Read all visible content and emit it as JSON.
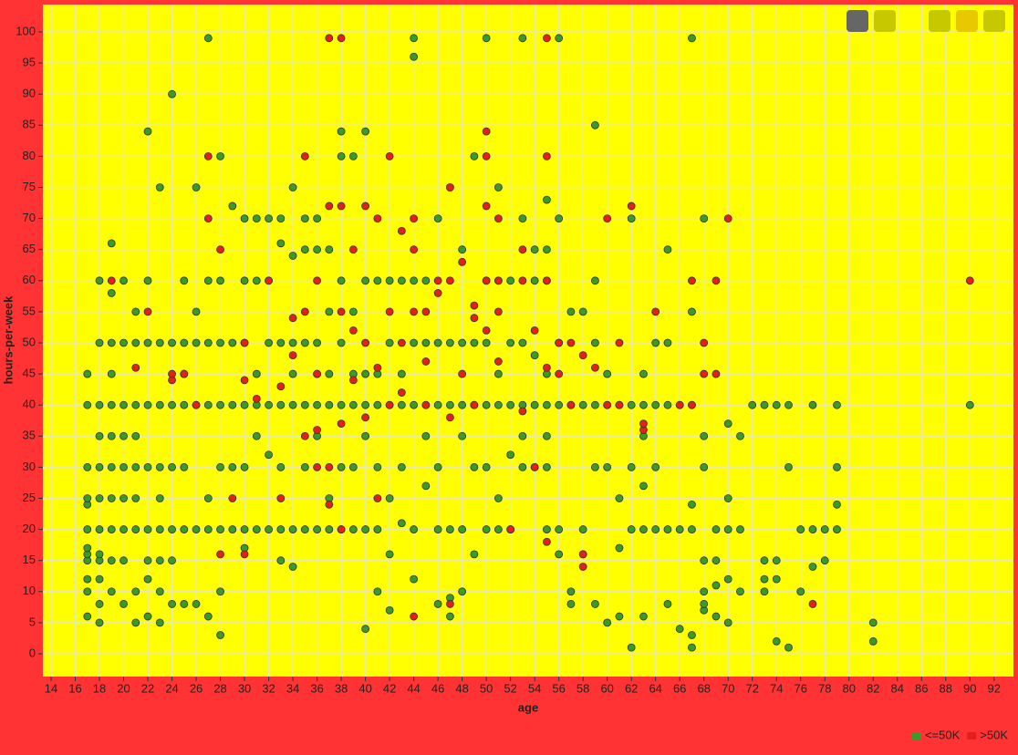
{
  "chart_data": {
    "type": "scatter",
    "x_label": "age",
    "y_label": "hours-per-week",
    "xlim": [
      13.32,
      93.6
    ],
    "ylim": [
      -3.67,
      104.4
    ],
    "xticks": [
      14,
      16,
      18,
      20,
      22,
      24,
      26,
      28,
      30,
      32,
      34,
      36,
      38,
      40,
      42,
      44,
      46,
      48,
      50,
      52,
      54,
      56,
      58,
      60,
      62,
      64,
      66,
      68,
      70,
      72,
      74,
      76,
      78,
      80,
      82,
      84,
      86,
      88,
      90,
      92
    ],
    "yticks": [
      0,
      5,
      10,
      15,
      20,
      25,
      30,
      35,
      40,
      45,
      50,
      55,
      60,
      65,
      70,
      75,
      80,
      85,
      90,
      95,
      100
    ],
    "grid": true,
    "legend": "bottom-right",
    "series": [
      {
        "name": "<=50K",
        "color": "#3a9a2a",
        "x": [
          17,
          17,
          17,
          17,
          17,
          17,
          17,
          17,
          17,
          17,
          17,
          17,
          18,
          18,
          18,
          18,
          18,
          18,
          18,
          18,
          18,
          18,
          18,
          18,
          19,
          19,
          19,
          19,
          19,
          19,
          19,
          19,
          19,
          19,
          19,
          20,
          20,
          20,
          20,
          20,
          20,
          20,
          20,
          20,
          21,
          21,
          21,
          21,
          21,
          21,
          21,
          21,
          21,
          22,
          22,
          22,
          22,
          22,
          22,
          22,
          22,
          22,
          23,
          23,
          23,
          23,
          23,
          23,
          23,
          23,
          23,
          24,
          24,
          24,
          24,
          24,
          24,
          24,
          25,
          25,
          25,
          25,
          25,
          25,
          25,
          26,
          26,
          26,
          26,
          26,
          26,
          27,
          27,
          27,
          27,
          27,
          27,
          27,
          28,
          28,
          28,
          28,
          28,
          28,
          28,
          28,
          29,
          29,
          29,
          29,
          29,
          30,
          30,
          30,
          30,
          30,
          30,
          30,
          31,
          31,
          31,
          31,
          31,
          31,
          32,
          32,
          32,
          32,
          32,
          32,
          33,
          33,
          33,
          33,
          33,
          33,
          33,
          34,
          34,
          34,
          34,
          34,
          34,
          34,
          35,
          35,
          35,
          35,
          35,
          35,
          36,
          36,
          36,
          36,
          36,
          36,
          36,
          37,
          37,
          37,
          37,
          37,
          37,
          38,
          38,
          38,
          38,
          38,
          38,
          38,
          39,
          39,
          39,
          39,
          39,
          39,
          40,
          40,
          40,
          40,
          40,
          40,
          40,
          41,
          41,
          41,
          41,
          41,
          41,
          42,
          42,
          42,
          42,
          42,
          42,
          43,
          43,
          43,
          43,
          43,
          44,
          44,
          44,
          44,
          44,
          44,
          44,
          45,
          45,
          45,
          45,
          45,
          46,
          46,
          46,
          46,
          46,
          46,
          47,
          47,
          47,
          47,
          47,
          47,
          48,
          48,
          48,
          48,
          48,
          48,
          49,
          49,
          49,
          49,
          49,
          50,
          50,
          50,
          50,
          50,
          50,
          51,
          51,
          51,
          51,
          51,
          51,
          52,
          52,
          52,
          52,
          52,
          53,
          53,
          53,
          53,
          53,
          53,
          54,
          54,
          54,
          54,
          54,
          55,
          55,
          55,
          55,
          55,
          55,
          55,
          55,
          56,
          56,
          56,
          56,
          56,
          56,
          57,
          57,
          57,
          57,
          58,
          58,
          58,
          58,
          59,
          59,
          59,
          59,
          59,
          59,
          60,
          60,
          60,
          60,
          61,
          61,
          61,
          61,
          62,
          62,
          62,
          62,
          62,
          63,
          63,
          63,
          63,
          63,
          63,
          64,
          64,
          64,
          64,
          65,
          65,
          65,
          65,
          65,
          66,
          66,
          66,
          67,
          67,
          67,
          67,
          67,
          67,
          67,
          68,
          68,
          68,
          68,
          68,
          68,
          68,
          69,
          69,
          69,
          69,
          70,
          70,
          70,
          70,
          70,
          71,
          71,
          71,
          72,
          73,
          73,
          73,
          73,
          74,
          74,
          74,
          74,
          75,
          75,
          75,
          76,
          76,
          77,
          77,
          77,
          78,
          78,
          79,
          79,
          79,
          79,
          82,
          82,
          90
        ],
        "values": [
          6,
          10,
          12,
          15,
          16,
          17,
          20,
          24,
          25,
          30,
          40,
          45,
          5,
          8,
          12,
          15,
          16,
          20,
          25,
          30,
          35,
          40,
          50,
          60,
          10,
          15,
          20,
          25,
          30,
          35,
          40,
          45,
          50,
          58,
          66,
          8,
          15,
          20,
          25,
          30,
          35,
          40,
          50,
          60,
          5,
          10,
          20,
          25,
          30,
          35,
          40,
          50,
          55,
          6,
          12,
          15,
          20,
          30,
          40,
          50,
          60,
          84,
          5,
          10,
          15,
          20,
          25,
          30,
          40,
          50,
          75,
          8,
          15,
          20,
          30,
          40,
          50,
          90,
          8,
          20,
          30,
          40,
          45,
          50,
          60,
          8,
          20,
          40,
          50,
          55,
          75,
          6,
          20,
          25,
          40,
          50,
          60,
          99,
          3,
          10,
          20,
          30,
          40,
          50,
          60,
          80,
          20,
          30,
          40,
          50,
          72,
          17,
          20,
          30,
          40,
          50,
          60,
          70,
          20,
          35,
          40,
          45,
          60,
          70,
          20,
          32,
          40,
          50,
          60,
          70,
          15,
          20,
          30,
          40,
          50,
          66,
          70,
          14,
          20,
          40,
          45,
          50,
          64,
          75,
          20,
          30,
          40,
          50,
          65,
          70,
          20,
          35,
          40,
          45,
          50,
          65,
          70,
          20,
          25,
          40,
          45,
          55,
          65,
          20,
          30,
          40,
          50,
          60,
          80,
          84,
          20,
          30,
          40,
          45,
          55,
          80,
          4,
          20,
          35,
          40,
          45,
          60,
          84,
          10,
          20,
          30,
          40,
          45,
          60,
          7,
          16,
          25,
          40,
          50,
          60,
          21,
          30,
          40,
          45,
          60,
          12,
          20,
          40,
          50,
          60,
          96,
          99,
          27,
          35,
          40,
          50,
          60,
          8,
          20,
          30,
          40,
          50,
          70,
          6,
          9,
          20,
          40,
          50,
          75,
          10,
          20,
          35,
          40,
          50,
          65,
          16,
          30,
          40,
          50,
          80,
          20,
          30,
          40,
          50,
          60,
          99,
          20,
          25,
          40,
          45,
          60,
          75,
          20,
          32,
          40,
          50,
          60,
          30,
          35,
          40,
          50,
          70,
          99,
          30,
          40,
          48,
          60,
          65,
          20,
          30,
          35,
          40,
          45,
          60,
          65,
          73,
          16,
          20,
          40,
          50,
          70,
          99,
          8,
          10,
          40,
          55,
          16,
          20,
          40,
          55,
          8,
          30,
          40,
          50,
          60,
          85,
          5,
          30,
          40,
          45,
          6,
          17,
          25,
          40,
          1,
          20,
          30,
          40,
          70,
          6,
          20,
          27,
          35,
          40,
          45,
          20,
          30,
          40,
          50,
          8,
          20,
          40,
          50,
          65,
          4,
          20,
          40,
          1,
          3,
          20,
          24,
          40,
          55,
          99,
          7,
          8,
          10,
          15,
          30,
          35,
          70,
          6,
          11,
          15,
          20,
          5,
          12,
          20,
          25,
          37,
          10,
          20,
          35,
          40,
          10,
          12,
          15,
          40,
          2,
          12,
          15,
          40,
          1,
          30,
          40,
          10,
          20,
          14,
          20,
          40,
          15,
          20,
          20,
          24,
          30,
          40,
          2,
          5,
          40
        ]
      },
      {
        "name": ">50K",
        "color": "#e3201b",
        "x": [
          19,
          21,
          22,
          24,
          24,
          25,
          26,
          27,
          27,
          28,
          28,
          29,
          30,
          30,
          30,
          31,
          32,
          33,
          33,
          34,
          34,
          35,
          35,
          35,
          36,
          36,
          36,
          36,
          37,
          37,
          37,
          37,
          38,
          38,
          38,
          38,
          38,
          39,
          39,
          39,
          40,
          40,
          40,
          41,
          41,
          41,
          42,
          42,
          42,
          43,
          43,
          43,
          44,
          44,
          44,
          44,
          45,
          45,
          45,
          46,
          46,
          47,
          47,
          47,
          47,
          48,
          48,
          49,
          49,
          49,
          50,
          50,
          50,
          50,
          50,
          51,
          51,
          51,
          51,
          52,
          53,
          53,
          53,
          54,
          54,
          55,
          55,
          55,
          55,
          55,
          56,
          56,
          57,
          57,
          58,
          58,
          58,
          59,
          60,
          60,
          61,
          61,
          62,
          63,
          63,
          64,
          66,
          67,
          67,
          68,
          68,
          69,
          69,
          70,
          77,
          90
        ],
        "values": [
          60,
          46,
          55,
          44,
          45,
          45,
          40,
          70,
          80,
          16,
          65,
          25,
          16,
          44,
          50,
          41,
          60,
          25,
          43,
          48,
          54,
          35,
          55,
          80,
          30,
          36,
          45,
          60,
          24,
          30,
          72,
          99,
          20,
          37,
          55,
          72,
          99,
          44,
          52,
          65,
          38,
          50,
          72,
          25,
          46,
          70,
          40,
          55,
          80,
          42,
          50,
          68,
          6,
          55,
          65,
          70,
          40,
          47,
          55,
          58,
          60,
          8,
          38,
          60,
          75,
          45,
          63,
          40,
          54,
          56,
          52,
          60,
          72,
          80,
          84,
          47,
          55,
          60,
          70,
          20,
          39,
          60,
          65,
          30,
          52,
          18,
          46,
          60,
          80,
          99,
          45,
          50,
          40,
          50,
          14,
          16,
          48,
          46,
          40,
          70,
          40,
          50,
          72,
          36,
          37,
          55,
          40,
          40,
          60,
          45,
          50,
          45,
          60,
          70,
          8,
          60
        ]
      }
    ]
  }
}
